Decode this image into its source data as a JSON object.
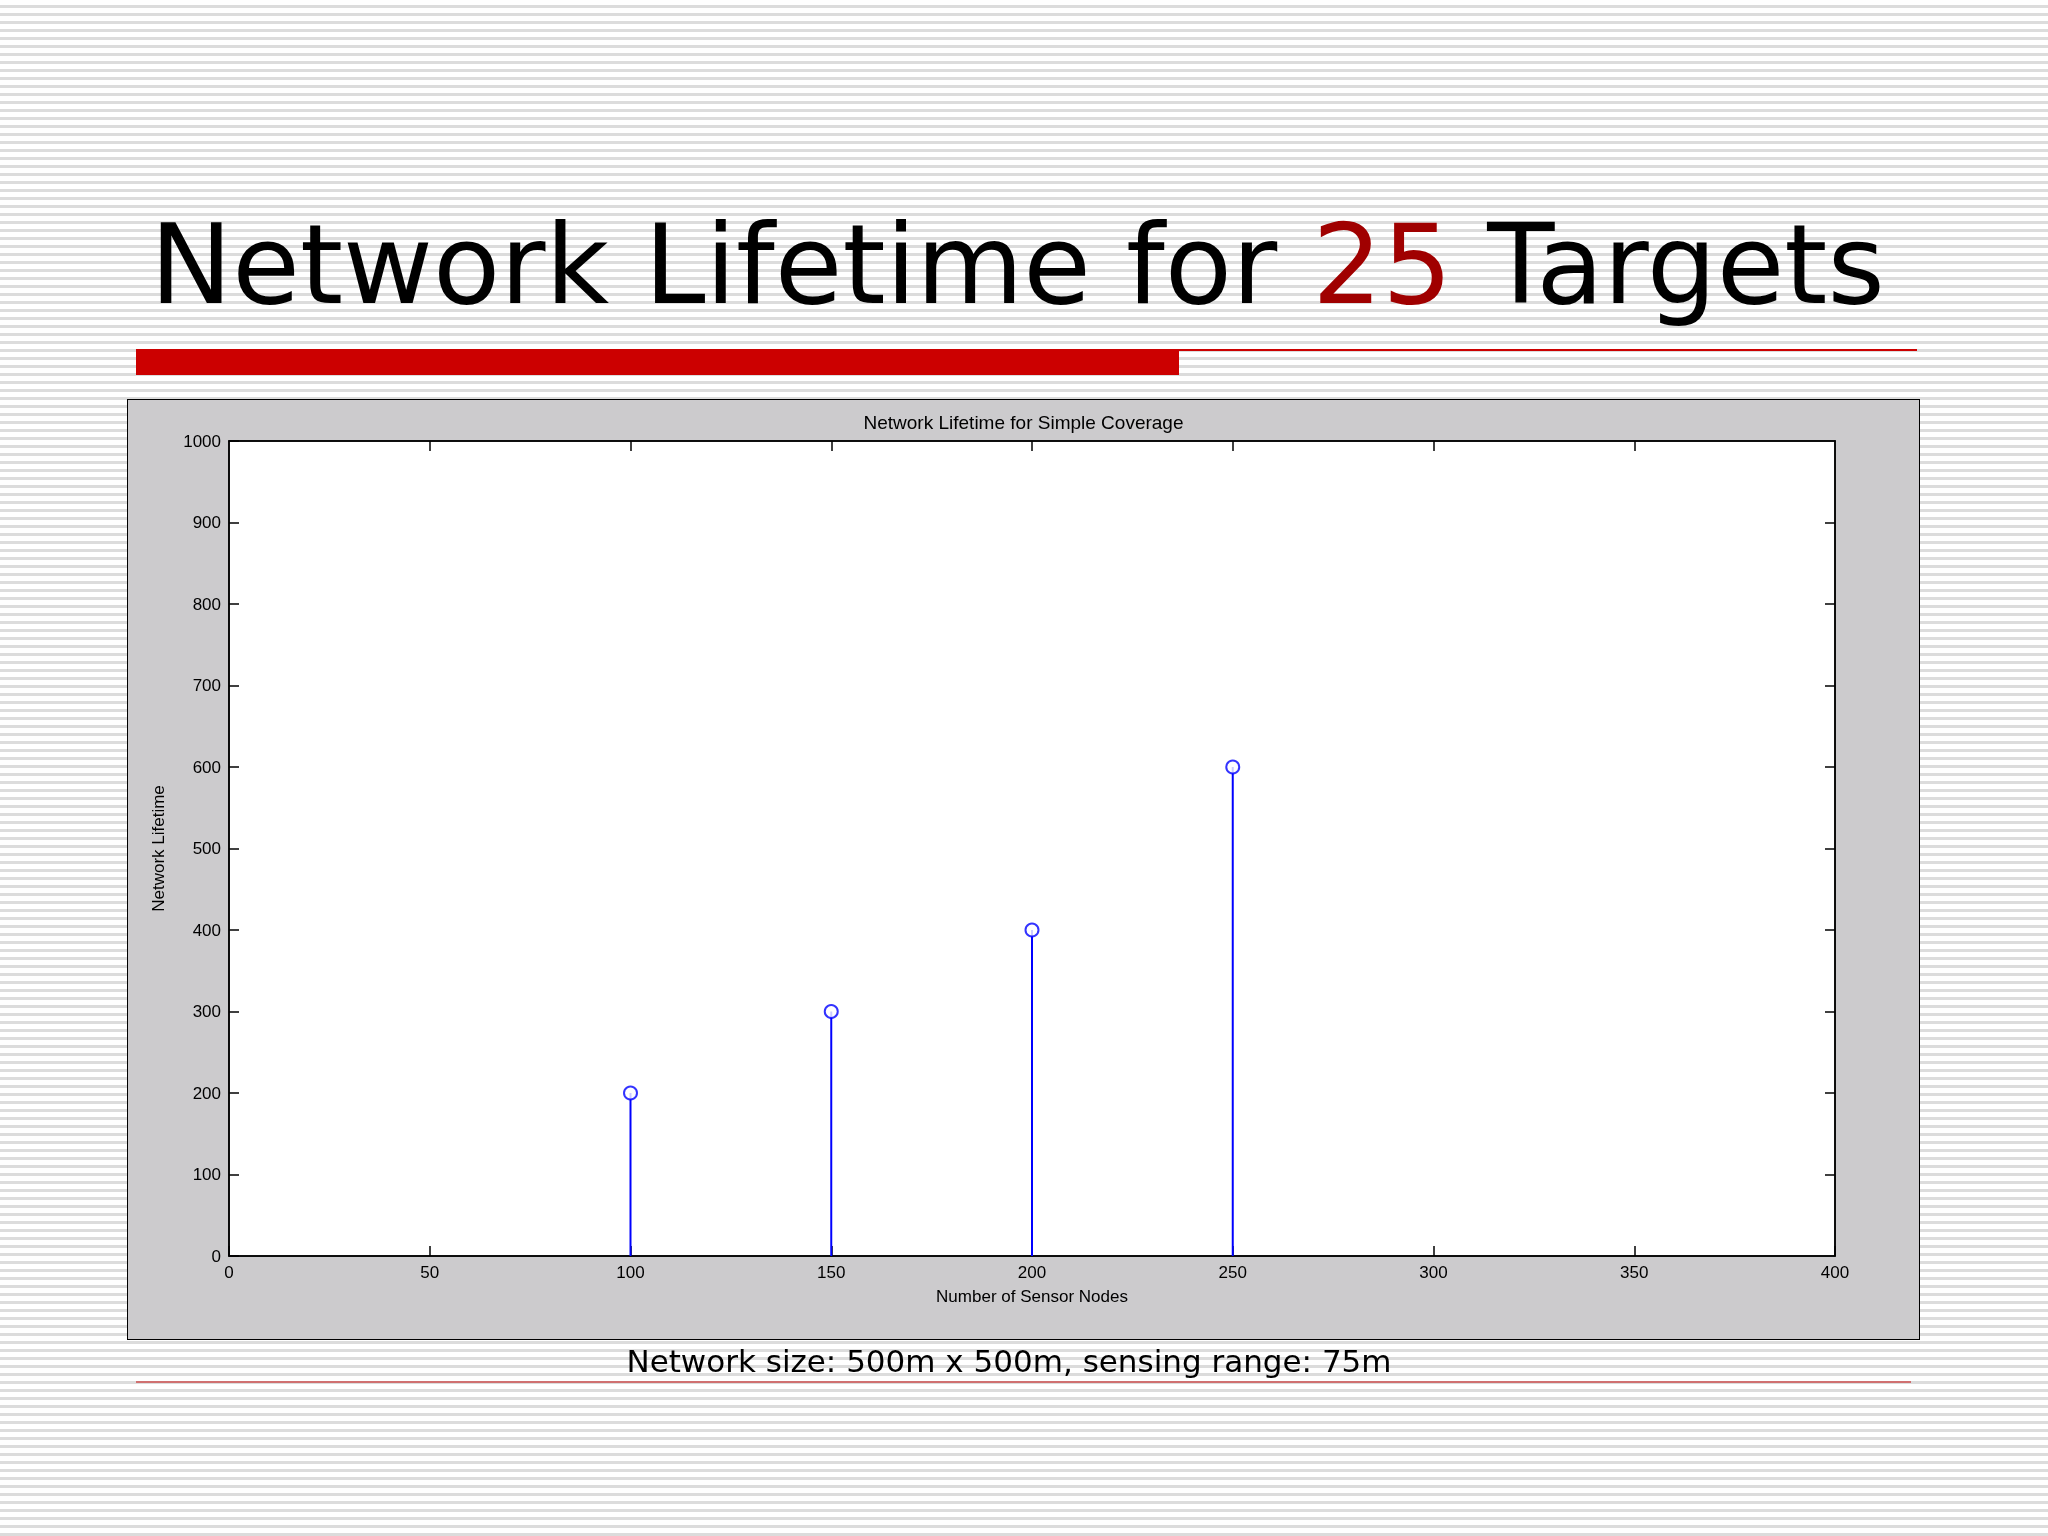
{
  "chart_data": {
    "type": "lollipop",
    "title": "Network Lifetime for 25 Targets",
    "subtitle": "Network Lifetime for Simple Coverage",
    "xlabel": "Number of Sensor Nodes",
    "ylabel": "Network Lifetime",
    "x": [
      100,
      150,
      200,
      250
    ],
    "values": [
      200,
      300,
      400,
      600
    ],
    "color": "#0000ff",
    "marker": "circle",
    "xlim": [
      0,
      400
    ],
    "xticks": [
      0,
      50,
      100,
      150,
      200,
      250,
      300,
      350,
      400
    ],
    "ylim": [
      0,
      1000
    ],
    "yticks": [
      0,
      100,
      200,
      300,
      400,
      500,
      600,
      700,
      800,
      900,
      1000
    ],
    "grid": false,
    "annotations": [
      "Network size: 500m x 500m, sensing range: 75m"
    ]
  }
}
